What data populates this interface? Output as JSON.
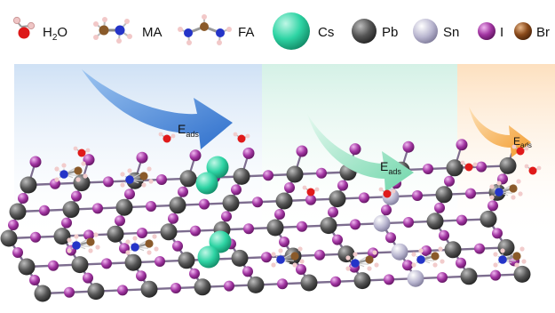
{
  "legend": {
    "items": [
      {
        "id": "h2o",
        "label_main": "H",
        "label_sub": "2",
        "label_tail": "O",
        "icon": "water-molecule"
      },
      {
        "id": "ma",
        "label": "MA",
        "icon": "methylammonium-molecule"
      },
      {
        "id": "fa",
        "label": "FA",
        "icon": "formamidinium-molecule"
      },
      {
        "id": "cs",
        "label": "Cs",
        "icon": "cs-atom",
        "color": "#2fd8a8"
      },
      {
        "id": "pb",
        "label": "Pb",
        "icon": "pb-atom",
        "color": "#555555"
      },
      {
        "id": "sn",
        "label": "Sn",
        "icon": "sn-atom",
        "color": "#b9b6cf"
      },
      {
        "id": "i",
        "label": "I",
        "icon": "iodine-atom",
        "color": "#9b2a9b"
      },
      {
        "id": "br",
        "label": "Br",
        "icon": "bromine-atom",
        "color": "#8a4a1a"
      }
    ]
  },
  "panels": [
    {
      "id": "panel-1",
      "tint": "#d6e6f7"
    },
    {
      "id": "panel-2",
      "tint": "#d9f2ea"
    },
    {
      "id": "panel-3",
      "tint": "#fde3c5"
    }
  ],
  "arrows": [
    {
      "id": "arrow-1",
      "color": "#3a7dd6",
      "label_main": "E",
      "label_sub": "ads"
    },
    {
      "id": "arrow-2",
      "color": "#7fd9b4",
      "label_main": "E",
      "label_sub": "ads"
    },
    {
      "id": "arrow-3",
      "color": "#f2a43a",
      "label_main": "E",
      "label_sub": "ads"
    }
  ],
  "colors": {
    "pb": "#4a4a4a",
    "sn": "#b0adc8",
    "iodine": "#8e2a8e",
    "bromine": "#8a4a1a",
    "cs": "#2ed4a4",
    "oxygen": "#e01a1a",
    "hydrogen": "#f0c8c8",
    "carbon": "#8a5a2a",
    "nitrogen": "#2a3acc"
  }
}
